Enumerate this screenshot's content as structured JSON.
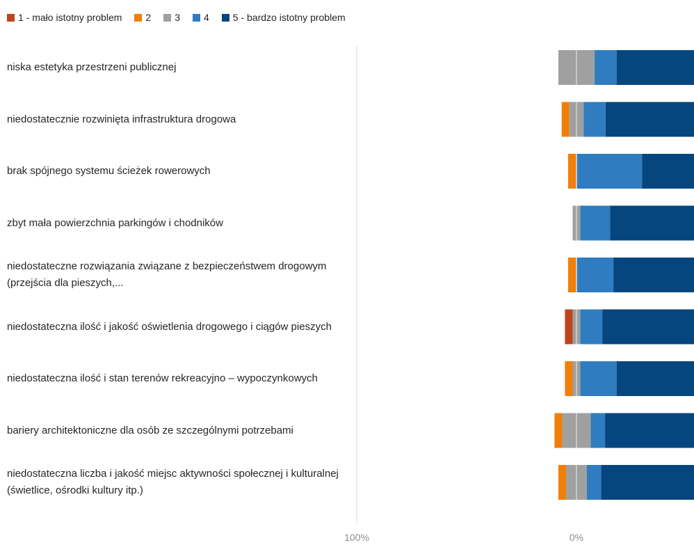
{
  "chart_data": {
    "type": "bar",
    "layout": "diverging-stacked-horizontal",
    "legend_position": "top",
    "grid": false,
    "series": [
      {
        "name": "1 - mało istotny problem",
        "color": "#C0441A",
        "side": "neg"
      },
      {
        "name": "2",
        "color": "#F07F09",
        "side": "neg"
      },
      {
        "name": "3",
        "color": "#A0A0A0",
        "side": "split"
      },
      {
        "name": "4",
        "color": "#2F7DC0",
        "side": "pos"
      },
      {
        "name": "5 - bardzo istotny problem",
        "color": "#06467F",
        "side": "pos"
      }
    ],
    "categories": [
      "niska estetyka przestrzeni publicznej",
      "niedostatecznie rozwinięta infrastruktura drogowa",
      "brak spójnego systemu ścieżek rowerowych",
      "zbyt mała powierzchnia parkingów i chodników",
      "niedostateczne rozwiązania związane z bezpieczeństwem drogowym (przejścia dla pieszych,...",
      "niedostateczna ilość i jakość oświetlenia drogowego i ciągów pieszych",
      "niedostateczna ilość i stan terenów rekreacyjno – wypoczynkowych",
      "bariery architektoniczne dla osób ze szczególnymi potrzebami",
      "niedostateczna liczba i jakość miejsc aktywności społecznej i kulturalnej (świetlice, ośrodki kultury itp.)"
    ],
    "values": [
      [
        0,
        0,
        16.5,
        10,
        100
      ],
      [
        0,
        3.5,
        6.5,
        10,
        100
      ],
      [
        0,
        3.5,
        0.6,
        29.5,
        100
      ],
      [
        0,
        0,
        3.5,
        13.5,
        100
      ],
      [
        0,
        3.5,
        0.6,
        16.5,
        100
      ],
      [
        3.5,
        0,
        3.5,
        10,
        100
      ],
      [
        0,
        3.5,
        3.5,
        16.5,
        100
      ],
      [
        0,
        3.5,
        13,
        6.5,
        100
      ],
      [
        0,
        3.5,
        9.5,
        6.5,
        100
      ]
    ],
    "xlim": [
      -100,
      35
    ],
    "x_ticks": [
      {
        "value": -100,
        "label": "100%"
      },
      {
        "value": 0,
        "label": "0%"
      }
    ]
  }
}
